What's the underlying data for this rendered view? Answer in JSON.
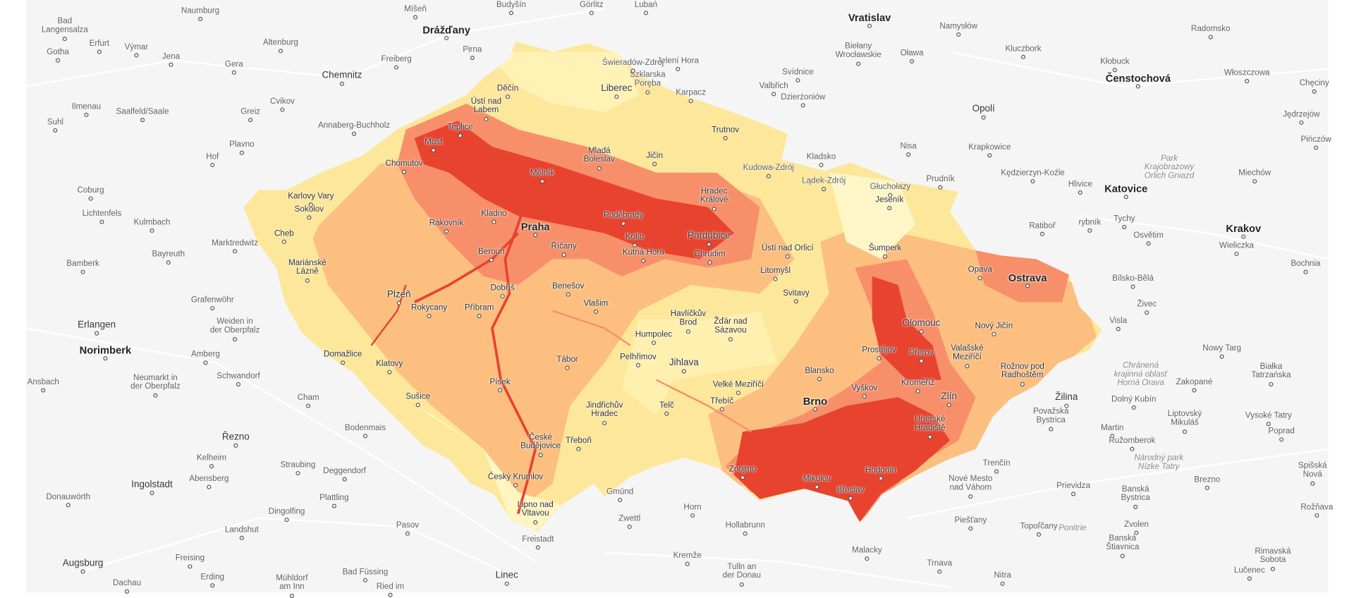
{
  "map": {
    "colors": {
      "background": "#f5f5f5",
      "lowest": "#fff9c8",
      "low": "#fde79a",
      "mid": "#fcbf80",
      "high": "#f7906a",
      "highest": "#e8432f"
    },
    "labels_outside": [
      "Bad\nLangensalza",
      "Naumburg",
      "Míšeň",
      "Budyšín",
      "Görlitz",
      "Lubań",
      "Drážďany",
      "Erfurt",
      "Výmar",
      "Gotha",
      "Jena",
      "Altenburg",
      "Gera",
      "Freiberg",
      "Pirna",
      "Chemnitz",
      "Ilmenau",
      "Saalfeld/Saale",
      "Greiz",
      "Cvikov",
      "Suhl",
      "Annaberg-Buchholz",
      "Plavno",
      "Hof",
      "Coburg",
      "Lichtenfels",
      "Kulmbach",
      "Marktredwitz",
      "Bayreuth",
      "Bamberk",
      "Grafenwöhr",
      "Erlangen",
      "Weiden in\nder Oberpfalz",
      "Norimberk",
      "Amberg",
      "Ansbach",
      "Neumarkt in\nder Oberpfalz",
      "Schwandorf",
      "Cham",
      "Bodenmais",
      "Řezno",
      "Kelheim",
      "Abensberg",
      "Straubing",
      "Deggendorf",
      "Ingolstadt",
      "Plattling",
      "Donauwörth",
      "Dingolfing",
      "Landshut",
      "Pasov",
      "Freising",
      "Augsburg",
      "Erding",
      "Dachau",
      "Mühldorf\nam Inn",
      "Bad Füssing",
      "Ried im",
      "Linec",
      "Freistadt",
      "Zwettl",
      "Horn",
      "Hollabrunn",
      "Kremže",
      "Tulln an\nder Donau",
      "Gmünd",
      "Malacky",
      "Trnava",
      "Nitra",
      "Piešťany",
      "Topoľčany",
      "Nové Mesto\nnad Váhom",
      "Trenčín",
      "Prievidza",
      "Ponitrie",
      "Zvolen",
      "Banská\nŠtiavnica",
      "Banská\nBystrica",
      "Národný park\nNízke Tatry",
      "Brezno",
      "Rimavská\nSobota",
      "Lučenec",
      "Martin",
      "Ružomberok",
      "Liptovský\nMikuláš",
      "Poprad",
      "Spišská\nNová",
      "Rožňava",
      "Žilina",
      "Dolný Kubín",
      "Považská\nBystrica",
      "Chránená\nkrajinná oblasť\nHorná Orava",
      "Zakopané",
      "Nowy Targ",
      "Białka\nTatrzańska",
      "Vysoké Tatry",
      "Visla",
      "Živec",
      "Bílsko-Bělá",
      "Wieliczka",
      "Krakov",
      "Bochnia",
      "Osvětim",
      "Tychy",
      "Katovice",
      "Hlivice",
      "Kędzierzyn-Koźle",
      "Krapkowice",
      "Ratiboř",
      "rybník",
      "Opolí",
      "Nisa",
      "Prudník",
      "Park\nKrajobrazowy\nOrlich Gniazd",
      "Miechów",
      "Jędrzejów",
      "Pińczów",
      "Chęciny",
      "Włoszczowa",
      "Kłobuck",
      "Čenstochová",
      "Radomsko",
      "Kluczbork",
      "Namysłów",
      "Vratislav",
      "Oława",
      "Biełany\nWrocławskie",
      "Svídnice",
      "Valbřich",
      "Dzierżoniów",
      "Jelení Hora",
      "Szklarska\nPoręba",
      "Świeradów-Zdrój",
      "Karpacz",
      "Kladsko",
      "Lądek-Zdrój",
      "Głuchołazy",
      "Kudowa-Zdrój"
    ],
    "labels_inside": [
      "Děčín",
      "Ústí nad\nLabem",
      "Teplice",
      "Most",
      "Chomutov",
      "Liberec",
      "Mladá\nBoleslav",
      "Jičín",
      "Trutnov",
      "Mělník",
      "Karlovy Vary",
      "Sokolov",
      "Cheb",
      "Mariánské\nLázně",
      "Rakovník",
      "Kladno",
      "Praha",
      "Říčany",
      "Beroun",
      "Poděbrady",
      "Kolín",
      "Kutná Hora",
      "Hradec\nKrálové",
      "Pardubice",
      "Chrudim",
      "Ústí nad Orlicí",
      "Jeseník",
      "Šumperk",
      "Litomyšl",
      "Svitavy",
      "Dobříš",
      "Benešov",
      "Vlašim",
      "Plzeň",
      "Rokycany",
      "Příbram",
      "Havlíčkův\nBrod",
      "Humpolec",
      "Žďár nad\nSázavou",
      "Domažlice",
      "Klatovy",
      "Tábor",
      "Pelhřimov",
      "Jihlava",
      "Opava",
      "Ostrava",
      "Olomouc",
      "Nový Jičín",
      "Prostějov",
      "Přerov",
      "Valašské\nMeziříčí",
      "Rožnov pod\nRadhoštěm",
      "Písek",
      "Sušice",
      "Blansko",
      "Velké Meziříčí",
      "Třebíč",
      "Brno",
      "Vyškov",
      "Kroměříž",
      "Zlín",
      "Jindřichův\nHradec",
      "Telč",
      "České\nBudějovice",
      "Třeboň",
      "Uherské\nHradiště",
      "Znojmo",
      "Hodonín",
      "Mikulov",
      "Břeclav",
      "Český Krumlov",
      "Lipno nad\nVltavou"
    ]
  }
}
